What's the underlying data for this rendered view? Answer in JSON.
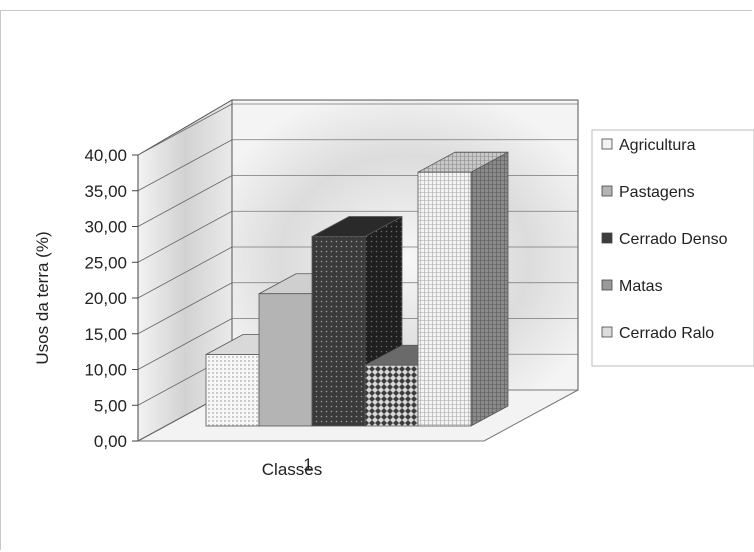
{
  "chart_data": {
    "type": "bar",
    "ylabel": "Usos da terra (%)",
    "xlabel": "Classes",
    "categories": [
      "1"
    ],
    "ylim": [
      0,
      40
    ],
    "yticks": [
      "0,00",
      "5,00",
      "10,00",
      "15,00",
      "20,00",
      "25,00",
      "30,00",
      "35,00",
      "40,00"
    ],
    "series": [
      {
        "name": "Agricultura",
        "values": [
          10.0
        ]
      },
      {
        "name": "Pastagens",
        "values": [
          18.5
        ]
      },
      {
        "name": "Cerrado Denso",
        "values": [
          26.5
        ]
      },
      {
        "name": "Matas",
        "values": [
          8.5
        ]
      },
      {
        "name": "Cerrado Ralo",
        "values": [
          35.5
        ]
      }
    ],
    "legend_position": "right",
    "grid": true,
    "style": "3d-column",
    "colors": {
      "Agricultura": "#f2f2f2",
      "Pastagens": "#b4b4b4",
      "Cerrado Denso": "#3c3c3c",
      "Matas": "#9a9a9a",
      "Cerrado Ralo": "#dcdcdc"
    }
  }
}
